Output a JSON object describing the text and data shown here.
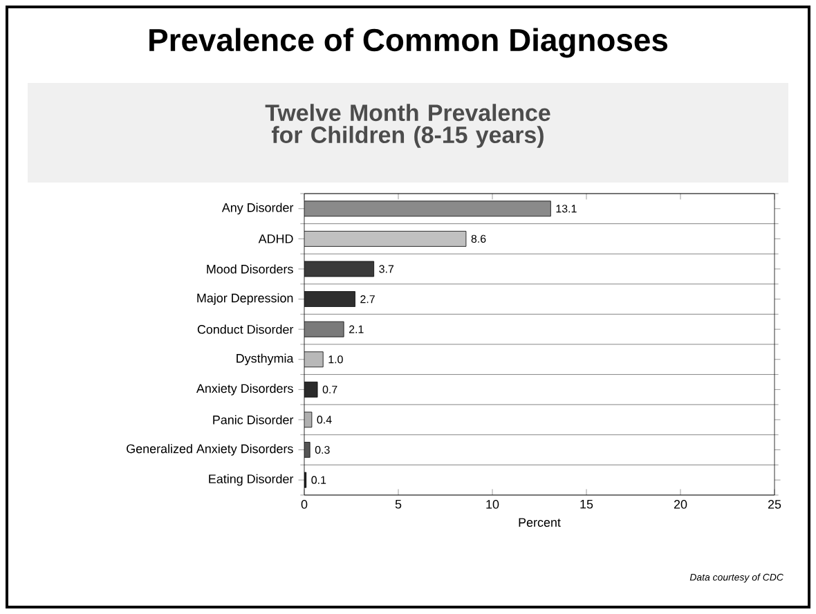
{
  "chart_data": {
    "type": "bar",
    "orientation": "horizontal",
    "title": "Prevalence of Common Diagnoses",
    "subtitle": "Twelve Month Prevalence for Children (8-15 years)",
    "xlabel": "Percent",
    "categories": [
      "Any Disorder",
      "ADHD",
      "Mood Disorders",
      "Major Depression",
      "Conduct Disorder",
      "Dysthymia",
      "Anxiety Disorders",
      "Panic Disorder",
      "Generalized Anxiety Disorders",
      "Eating Disorder"
    ],
    "values": [
      13.1,
      8.6,
      3.7,
      2.7,
      2.1,
      1.0,
      0.7,
      0.4,
      0.3,
      0.1
    ],
    "value_labels": [
      "13.1",
      "8.6",
      "3.7",
      "2.7",
      "2.1",
      "1.0",
      "0.7",
      "0.4",
      "0.3",
      "0.1"
    ],
    "colors": [
      "#8a8a8a",
      "#c0c0c0",
      "#3a3a3a",
      "#2e2e2e",
      "#7a7a7a",
      "#b8b8b8",
      "#2a2a2a",
      "#b0b0b0",
      "#555555",
      "#1e1e1e"
    ],
    "xlim": [
      0,
      25
    ],
    "xticks": [
      0,
      5,
      10,
      15,
      20,
      25
    ],
    "grid": "y",
    "annotations": [
      "Data courtesy of CDC"
    ]
  }
}
